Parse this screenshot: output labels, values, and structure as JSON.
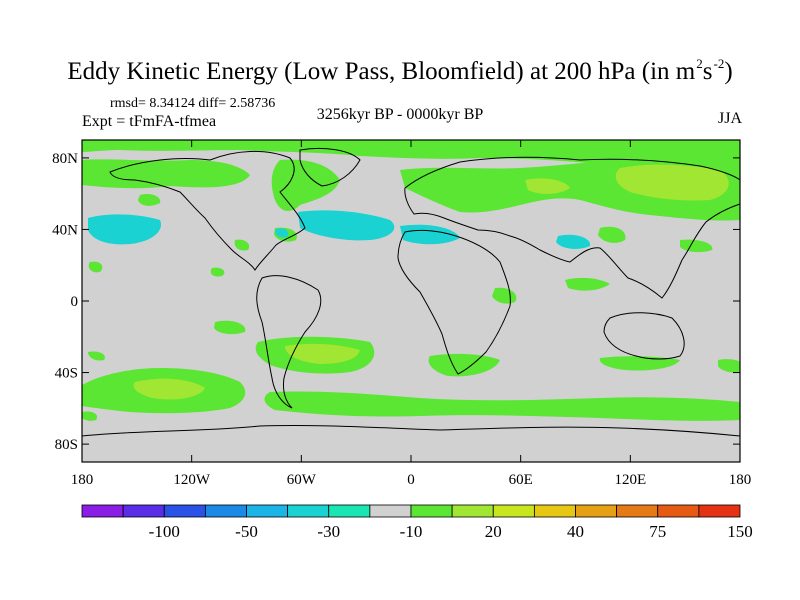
{
  "title": "Eddy Kinetic Energy (Low Pass, Bloomfield) at 200 hPa (in m",
  "title_unit_sup1": "2",
  "title_unit_mid": "s",
  "title_unit_sup2": "-2",
  "title_unit_end": ")",
  "stats": "rmsd= 8.34124 diff= 2.58736",
  "experiment": "Expt = tFmFA-tfmea",
  "period": "3256kyr BP - 0000kyr BP",
  "season": "JJA",
  "map": {
    "background_color": "#d1d1d1",
    "lat_ticks": [
      "80N",
      "40N",
      "0",
      "40S",
      "80S"
    ],
    "lat_values": [
      80,
      40,
      0,
      -40,
      -80
    ],
    "lon_ticks": [
      "180",
      "120W",
      "60W",
      "0",
      "60E",
      "120E",
      "180"
    ],
    "lon_values": [
      -180,
      -120,
      -60,
      0,
      60,
      120,
      180
    ],
    "lat_range": [
      -90,
      90
    ],
    "lon_range": [
      -180,
      180
    ]
  },
  "colorbar": {
    "colors": [
      "#8a1ee6",
      "#5a2de6",
      "#2a52e6",
      "#1a8ae6",
      "#1ab4e6",
      "#1ad2d2",
      "#1ae6b4",
      "#d1d1d1",
      "#5ae632",
      "#a0e632",
      "#c8e61e",
      "#e6c814",
      "#e6a014",
      "#e67a14",
      "#e65a14",
      "#e63214"
    ],
    "labels": [
      "-100",
      "-50",
      "-30",
      "-10",
      "20",
      "40",
      "75",
      "150"
    ]
  },
  "contour_colors": {
    "light_green": "#5ae632",
    "yellow_green": "#a0e632",
    "cyan": "#1ad2d2",
    "teal": "#1ae6b4"
  }
}
